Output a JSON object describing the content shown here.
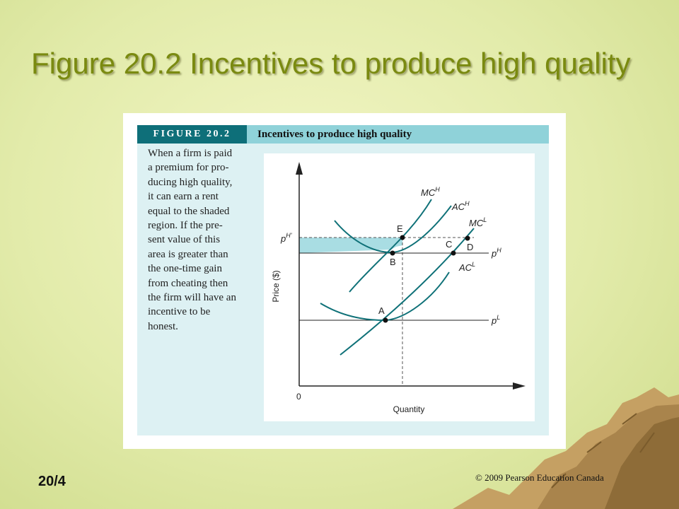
{
  "slide": {
    "title": "Figure 20.2 Incentives to produce high quality",
    "number": "20/4",
    "copyright": "© 2009 Pearson Education Canada"
  },
  "figure": {
    "label": "FIGURE 20.2",
    "caption": "Incentives to produce high quality",
    "text_lines": [
      "When a firm is paid",
      "a premium for pro-",
      "ducing high quality,",
      "it can earn a rent",
      "equal to the shaded",
      "region. If the pre-",
      "sent value of this",
      "area is greater than",
      "the one-time gain",
      "from cheating then",
      "the firm will have an",
      "incentive to be",
      "honest."
    ]
  },
  "diagram": {
    "x_axis_label": "Quantity",
    "y_axis_label": "Price ($)",
    "origin_label": "0",
    "curves": {
      "mc_high": {
        "base": "MC",
        "sup": "H"
      },
      "ac_high": {
        "base": "AC",
        "sup": "H"
      },
      "mc_low": {
        "base": "MC",
        "sup": "L"
      },
      "ac_low": {
        "base": "AC",
        "sup": "L"
      }
    },
    "price_levels": {
      "p_high_prime": {
        "base": "p",
        "sup": "H'"
      },
      "p_high": {
        "base": "p",
        "sup": "H"
      },
      "p_low": {
        "base": "p",
        "sup": "L"
      }
    },
    "points": [
      "E",
      "B",
      "C",
      "D",
      "A"
    ],
    "colors": {
      "curve": "#0f7178",
      "shaded_region": "#a9dde3",
      "axis": "#222222",
      "guide_line": "#555555"
    }
  }
}
